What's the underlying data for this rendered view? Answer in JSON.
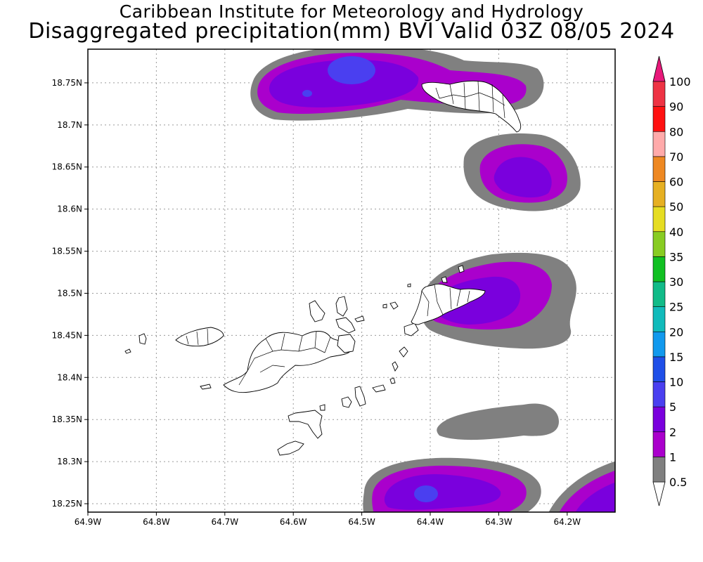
{
  "title": "Caribbean Institute for Meteorology and Hydrology",
  "subtitle": "Disaggregated precipitation(mm) BVI Valid 03Z 08/05 2024",
  "map": {
    "lon_range": [
      -64.9,
      -64.13
    ],
    "lat_range": [
      18.24,
      18.79
    ],
    "x_ticks": [
      {
        "value": -64.9,
        "label": "64.9W"
      },
      {
        "value": -64.8,
        "label": "64.8W"
      },
      {
        "value": -64.7,
        "label": "64.7W"
      },
      {
        "value": -64.6,
        "label": "64.6W"
      },
      {
        "value": -64.5,
        "label": "64.5W"
      },
      {
        "value": -64.4,
        "label": "64.4W"
      },
      {
        "value": -64.3,
        "label": "64.3W"
      },
      {
        "value": -64.2,
        "label": "64.2W"
      }
    ],
    "y_ticks": [
      {
        "value": 18.25,
        "label": "18.25N"
      },
      {
        "value": 18.3,
        "label": "18.3N"
      },
      {
        "value": 18.35,
        "label": "18.35N"
      },
      {
        "value": 18.4,
        "label": "18.4N"
      },
      {
        "value": 18.45,
        "label": "18.45N"
      },
      {
        "value": 18.5,
        "label": "18.5N"
      },
      {
        "value": 18.55,
        "label": "18.55N"
      },
      {
        "value": 18.6,
        "label": "18.6N"
      },
      {
        "value": 18.65,
        "label": "18.65N"
      },
      {
        "value": 18.7,
        "label": "18.7N"
      },
      {
        "value": 18.75,
        "label": "18.75N"
      }
    ],
    "grid": true,
    "land_color": "#ffffff",
    "precip_colors": {
      "c0_5": "#808080",
      "c1": "#aa00cc",
      "c2": "#7a00dd",
      "c5": "#4a3ff0"
    }
  },
  "colorbar": {
    "levels": [
      {
        "label": "0.5",
        "color": "#ffffff"
      },
      {
        "label": "1",
        "color": "#808080"
      },
      {
        "label": "2",
        "color": "#aa00cc"
      },
      {
        "label": "5",
        "color": "#7a00dd"
      },
      {
        "label": "10",
        "color": "#4a3ff0"
      },
      {
        "label": "15",
        "color": "#1f4fe8"
      },
      {
        "label": "20",
        "color": "#1199ee"
      },
      {
        "label": "25",
        "color": "#11bbbb"
      },
      {
        "label": "30",
        "color": "#11bb88"
      },
      {
        "label": "35",
        "color": "#11c022"
      },
      {
        "label": "40",
        "color": "#88cc22"
      },
      {
        "label": "50",
        "color": "#e6dd22"
      },
      {
        "label": "60",
        "color": "#e6b022"
      },
      {
        "label": "70",
        "color": "#ee8822"
      },
      {
        "label": "80",
        "color": "#ffaaaa"
      },
      {
        "label": "90",
        "color": "#ff1111"
      },
      {
        "label": "100",
        "color": "#ee3344"
      }
    ],
    "top_color": "#e8197a",
    "bottom_color": "#ffffff"
  }
}
